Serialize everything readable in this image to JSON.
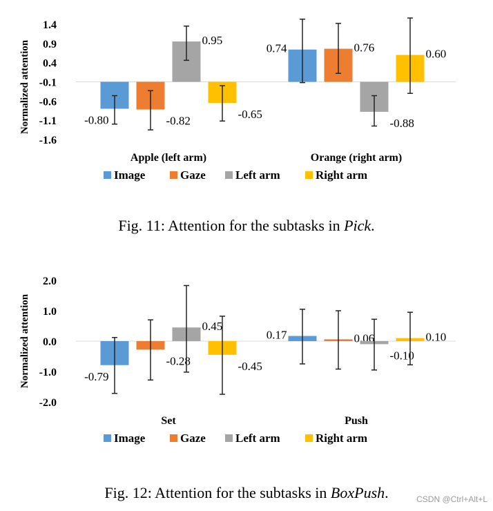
{
  "chart_data": [
    {
      "type": "bar",
      "ylabel": "Normalized attention",
      "ylim": [
        -1.6,
        1.4
      ],
      "yticks": [
        1.4,
        0.9,
        0.4,
        -0.1,
        -0.6,
        -1.1,
        -1.6
      ],
      "ytick_labels": [
        "1.4",
        "0.9",
        "0.4",
        "-0.1",
        "-0.6",
        "-1.1",
        "-1.6"
      ],
      "baseline": -0.1,
      "categories": [
        "Apple (left arm)",
        "Orange (right arm)"
      ],
      "series": [
        {
          "name": "Image",
          "color": "#5B9BD5",
          "values": [
            -0.8,
            0.74
          ],
          "labels": [
            "-0.80",
            "0.74"
          ],
          "err_low": [
            -1.2,
            -0.12
          ],
          "err_high": [
            -0.46,
            1.53
          ]
        },
        {
          "name": "Gaze",
          "color": "#ED7D31",
          "values": [
            -0.82,
            0.76
          ],
          "labels": [
            "-0.82",
            "0.76"
          ],
          "err_low": [
            -1.35,
            0.12
          ],
          "err_high": [
            -0.33,
            1.42
          ]
        },
        {
          "name": "Left arm",
          "color": "#A5A5A5",
          "values": [
            0.95,
            -0.88
          ],
          "labels": [
            "0.95",
            "-0.88"
          ],
          "err_low": [
            0.46,
            -1.25
          ],
          "err_high": [
            1.35,
            -0.46
          ]
        },
        {
          "name": "Right arm",
          "color": "#FFC000",
          "values": [
            -0.65,
            0.6
          ],
          "labels": [
            "-0.65",
            "0.60"
          ],
          "err_low": [
            -1.12,
            -0.4
          ],
          "err_high": [
            -0.2,
            1.56
          ]
        }
      ],
      "caption": {
        "prefix": "Fig. 11: Attention for the subtasks in ",
        "emph": "Pick",
        "suffix": "."
      }
    },
    {
      "type": "bar",
      "ylabel": "Normalized attention",
      "ylim": [
        -2.0,
        2.0
      ],
      "yticks": [
        2.0,
        1.0,
        0.0,
        -1.0,
        -2.0
      ],
      "ytick_labels": [
        "2.0",
        "1.0",
        "0.0",
        "-1.0",
        "-2.0"
      ],
      "baseline": 0.0,
      "categories": [
        "Set",
        "Push"
      ],
      "series": [
        {
          "name": "Image",
          "color": "#5B9BD5",
          "values": [
            -0.79,
            0.17
          ],
          "labels": [
            "-0.79",
            "0.17"
          ],
          "err_low": [
            -1.72,
            -0.75
          ],
          "err_high": [
            0.12,
            1.05
          ]
        },
        {
          "name": "Gaze",
          "color": "#ED7D31",
          "values": [
            -0.28,
            0.06
          ],
          "labels": [
            "-0.28",
            "0.06"
          ],
          "err_low": [
            -1.28,
            -0.92
          ],
          "err_high": [
            0.7,
            1.0
          ]
        },
        {
          "name": "Left arm",
          "color": "#A5A5A5",
          "values": [
            0.45,
            -0.1
          ],
          "labels": [
            "0.45",
            "-0.10"
          ],
          "err_low": [
            -1.02,
            -0.95
          ],
          "err_high": [
            1.83,
            0.72
          ]
        },
        {
          "name": "Right arm",
          "color": "#FFC000",
          "values": [
            -0.45,
            0.1
          ],
          "labels": [
            "-0.45",
            "0.10"
          ],
          "err_low": [
            -1.75,
            -0.78
          ],
          "err_high": [
            0.82,
            0.95
          ]
        }
      ],
      "caption": {
        "prefix": "Fig. 12: Attention for the subtasks in ",
        "emph": "BoxPush",
        "suffix": "."
      }
    }
  ],
  "watermark": "CSDN @Ctrl+Alt+L"
}
